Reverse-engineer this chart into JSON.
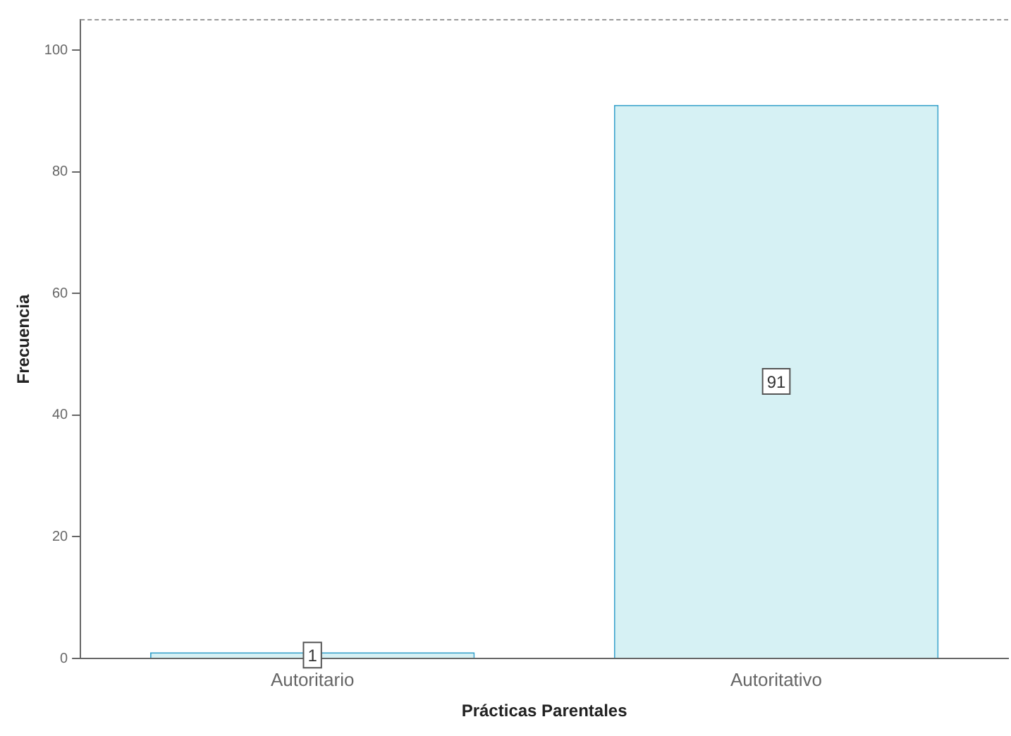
{
  "chart_data": {
    "type": "bar",
    "xlabel": "Prácticas Parentales",
    "ylabel": "Frecuencia",
    "categories": [
      "Autoritario",
      "Autoritativo"
    ],
    "values": [
      1,
      91
    ],
    "color": "#d6f1f4",
    "ylim": [
      0,
      105
    ],
    "yticks": [
      0,
      20,
      40,
      60,
      80,
      100
    ],
    "grid": false,
    "legend": false,
    "data_labels": true
  }
}
